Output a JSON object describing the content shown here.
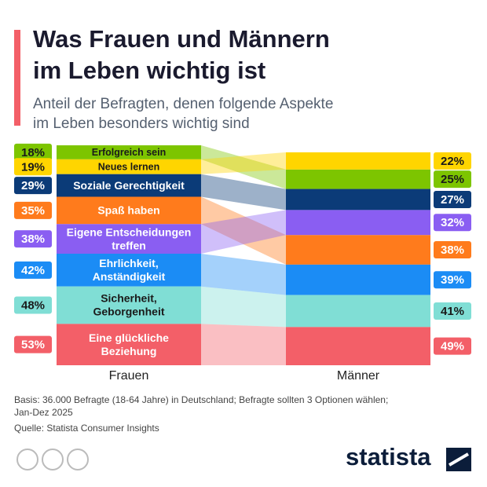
{
  "chart_data": {
    "type": "ranked-flow",
    "title": [
      "Was Frauen und Männern",
      "im Leben wichtig ist"
    ],
    "subtitle": [
      "Anteil der Befragten, denen folgende Aspekte",
      "im Leben besonders wichtig sind"
    ],
    "columns": [
      "Frauen",
      "Männer"
    ],
    "series": [
      {
        "name": [
          "Erfolgreich sein"
        ],
        "color": "#7dc500",
        "text_color": "#1a1a1a",
        "values": [
          18,
          25
        ],
        "value_labels": [
          "18%",
          "25%"
        ]
      },
      {
        "name": [
          "Neues lernen"
        ],
        "color": "#ffd500",
        "text_color": "#1a1a1a",
        "values": [
          19,
          22
        ],
        "value_labels": [
          "19%",
          "22%"
        ]
      },
      {
        "name": [
          "Soziale Gerechtigkeit"
        ],
        "color": "#0b3b78",
        "text_color": "#ffffff",
        "values": [
          29,
          27
        ],
        "value_labels": [
          "29%",
          "27%"
        ]
      },
      {
        "name": [
          "Spaß haben"
        ],
        "color": "#ff7b1c",
        "text_color": "#ffffff",
        "values": [
          35,
          38
        ],
        "value_labels": [
          "35%",
          "38%"
        ]
      },
      {
        "name": [
          "Eigene Entscheidungen",
          "treffen"
        ],
        "color": "#8a5ef2",
        "text_color": "#ffffff",
        "values": [
          38,
          32
        ],
        "value_labels": [
          "38%",
          "32%"
        ]
      },
      {
        "name": [
          "Ehrlichkeit,",
          "Anständigkeit"
        ],
        "color": "#1b8cf5",
        "text_color": "#ffffff",
        "values": [
          42,
          39
        ],
        "value_labels": [
          "42%",
          "39%"
        ]
      },
      {
        "name": [
          "Sicherheit,",
          "Geborgenheit"
        ],
        "color": "#80ded5",
        "text_color": "#1a1a1a",
        "values": [
          48,
          41
        ],
        "value_labels": [
          "48%",
          "41%"
        ]
      },
      {
        "name": [
          "Eine glückliche",
          "Beziehung"
        ],
        "color": "#f35f68",
        "text_color": "#ffffff",
        "values": [
          53,
          49
        ],
        "value_labels": [
          "53%",
          "49%"
        ]
      }
    ],
    "notes": [
      "Basis: 36.000 Befragte (18-64 Jahre) in Deutschland; Befragte sollten 3 Optionen wählen;",
      "Jan-Dez 2025",
      "Quelle: Statista Consumer Insights"
    ],
    "brand": "statista"
  }
}
